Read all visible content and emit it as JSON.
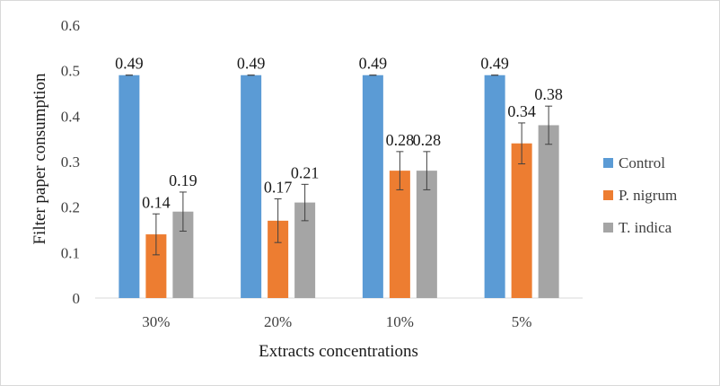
{
  "chart_data": {
    "type": "bar",
    "title": "",
    "xlabel": "Extracts concentrations",
    "ylabel": "Filter paper consumption",
    "categories": [
      "30%",
      "20%",
      "10%",
      "5%"
    ],
    "ylim": [
      0,
      0.6
    ],
    "yticks": [
      "0",
      "0.1",
      "0.2",
      "0.3",
      "0.4",
      "0.5",
      "0.6"
    ],
    "grid": false,
    "legend_position": "right",
    "series": [
      {
        "name": "Control",
        "color": "#5b9bd5",
        "values": [
          0.49,
          0.49,
          0.49,
          0.49
        ],
        "error": [
          0.0,
          0.0,
          0.0,
          0.0
        ],
        "labels": [
          "0.49",
          "0.49",
          "0.49",
          "0.49"
        ]
      },
      {
        "name": "P. nigrum",
        "color": "#ed7d31",
        "values": [
          0.14,
          0.17,
          0.28,
          0.34
        ],
        "error": [
          0.045,
          0.048,
          0.042,
          0.045
        ],
        "labels": [
          "0.14",
          "0.17",
          "0.28",
          "0.34"
        ]
      },
      {
        "name": "T. indica",
        "color": "#a5a5a5",
        "values": [
          0.19,
          0.21,
          0.28,
          0.38
        ],
        "error": [
          0.043,
          0.04,
          0.042,
          0.042
        ],
        "labels": [
          "0.19",
          "0.21",
          "0.28",
          "0.38"
        ]
      }
    ]
  }
}
